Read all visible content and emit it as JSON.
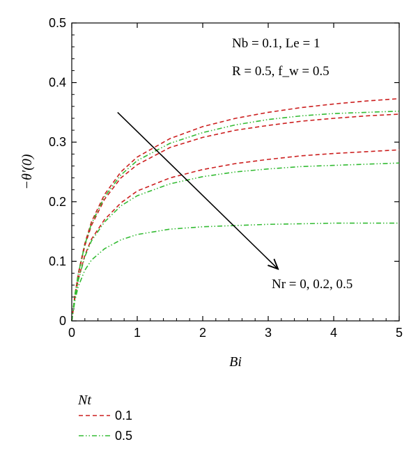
{
  "chart_data": {
    "type": "line",
    "xlabel": "Bi",
    "ylabel": "−θ′(0)",
    "xlim": [
      0,
      5
    ],
    "ylim": [
      0,
      0.5
    ],
    "x_ticks": [
      "0",
      "1",
      "2",
      "3",
      "4",
      "5"
    ],
    "y_ticks": [
      "0",
      "0.1",
      "0.2",
      "0.3",
      "0.4",
      "0.5"
    ],
    "grid": false,
    "x": [
      0,
      0.05,
      0.1,
      0.2,
      0.3,
      0.5,
      0.75,
      1,
      1.5,
      2,
      2.5,
      3,
      3.5,
      4,
      4.5,
      5
    ],
    "series": [
      {
        "group": "0.1",
        "color": "#cc1f1f",
        "dash": "dashed",
        "values": [
          0,
          0.045,
          0.08,
          0.13,
          0.166,
          0.212,
          0.25,
          0.275,
          0.306,
          0.326,
          0.34,
          0.35,
          0.358,
          0.364,
          0.369,
          0.373
        ]
      },
      {
        "group": "0.1",
        "color": "#cc1f1f",
        "dash": "dashed",
        "values": [
          0,
          0.044,
          0.078,
          0.126,
          0.16,
          0.204,
          0.24,
          0.262,
          0.291,
          0.308,
          0.32,
          0.328,
          0.335,
          0.34,
          0.344,
          0.347
        ]
      },
      {
        "group": "0.1",
        "color": "#cc1f1f",
        "dash": "dashed",
        "values": [
          0,
          0.04,
          0.07,
          0.11,
          0.137,
          0.17,
          0.198,
          0.218,
          0.24,
          0.254,
          0.264,
          0.271,
          0.277,
          0.281,
          0.284,
          0.287
        ]
      },
      {
        "group": "0.5",
        "color": "#33bb33",
        "dash": "dash-dot-dot",
        "values": [
          0,
          0.045,
          0.079,
          0.128,
          0.163,
          0.208,
          0.245,
          0.269,
          0.298,
          0.316,
          0.329,
          0.338,
          0.344,
          0.348,
          0.35,
          0.352
        ]
      },
      {
        "group": "0.5",
        "color": "#33bb33",
        "dash": "dash-dot-dot",
        "values": [
          0,
          0.039,
          0.068,
          0.108,
          0.134,
          0.166,
          0.193,
          0.21,
          0.23,
          0.242,
          0.25,
          0.255,
          0.259,
          0.261,
          0.263,
          0.265
        ]
      },
      {
        "group": "0.5",
        "color": "#33bb33",
        "dash": "dash-dot-dot",
        "values": [
          0,
          0.035,
          0.058,
          0.085,
          0.102,
          0.121,
          0.136,
          0.145,
          0.154,
          0.158,
          0.16,
          0.162,
          0.163,
          0.164,
          0.164,
          0.164
        ]
      }
    ],
    "annotations": {
      "params_line1": "Nb = 0.1, Le = 1",
      "params_line2": "R = 0.5, f_w = 0.5",
      "arrow_label": "Nr = 0, 0.2, 0.5",
      "arrow": {
        "from": [
          0.7,
          0.35
        ],
        "to": [
          3.15,
          0.087
        ]
      }
    },
    "legend": {
      "title": "Nt",
      "placement": "bottom-left, below plot",
      "entries": [
        {
          "label": "0.1",
          "color": "#cc1f1f",
          "dash": "dashed"
        },
        {
          "label": "0.5",
          "color": "#33bb33",
          "dash": "dash-dot-dot"
        }
      ]
    }
  }
}
